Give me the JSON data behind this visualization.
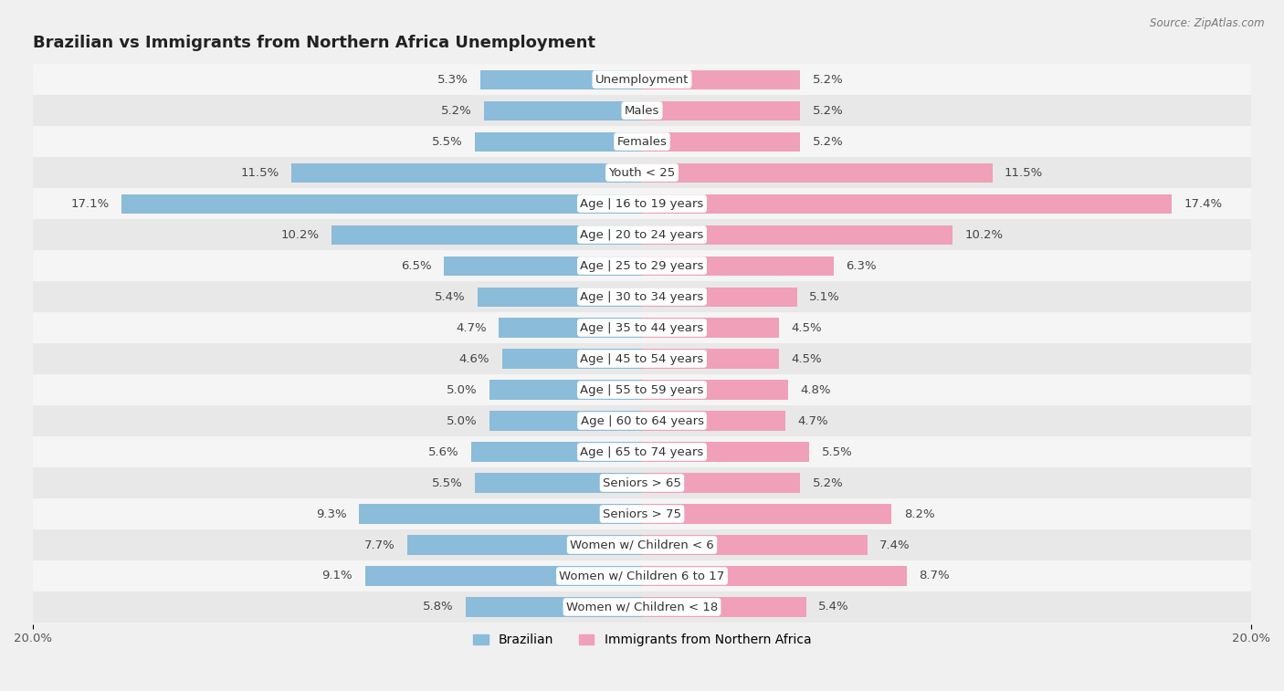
{
  "title": "Brazilian vs Immigrants from Northern Africa Unemployment",
  "source": "Source: ZipAtlas.com",
  "categories": [
    "Unemployment",
    "Males",
    "Females",
    "Youth < 25",
    "Age | 16 to 19 years",
    "Age | 20 to 24 years",
    "Age | 25 to 29 years",
    "Age | 30 to 34 years",
    "Age | 35 to 44 years",
    "Age | 45 to 54 years",
    "Age | 55 to 59 years",
    "Age | 60 to 64 years",
    "Age | 65 to 74 years",
    "Seniors > 65",
    "Seniors > 75",
    "Women w/ Children < 6",
    "Women w/ Children 6 to 17",
    "Women w/ Children < 18"
  ],
  "brazilian": [
    5.3,
    5.2,
    5.5,
    11.5,
    17.1,
    10.2,
    6.5,
    5.4,
    4.7,
    4.6,
    5.0,
    5.0,
    5.6,
    5.5,
    9.3,
    7.7,
    9.1,
    5.8
  ],
  "immigrants": [
    5.2,
    5.2,
    5.2,
    11.5,
    17.4,
    10.2,
    6.3,
    5.1,
    4.5,
    4.5,
    4.8,
    4.7,
    5.5,
    5.2,
    8.2,
    7.4,
    8.7,
    5.4
  ],
  "brazilian_color": "#8BBCDA",
  "immigrants_color": "#F0A0B8",
  "row_bg_light": "#f5f5f5",
  "row_bg_dark": "#e8e8e8",
  "background_color": "#f0f0f0",
  "bar_height": 0.62,
  "xlim": 20.0,
  "legend_brazilian": "Brazilian",
  "legend_immigrants": "Immigrants from Northern Africa",
  "label_fontsize": 9.5,
  "value_fontsize": 9.5,
  "title_fontsize": 13
}
